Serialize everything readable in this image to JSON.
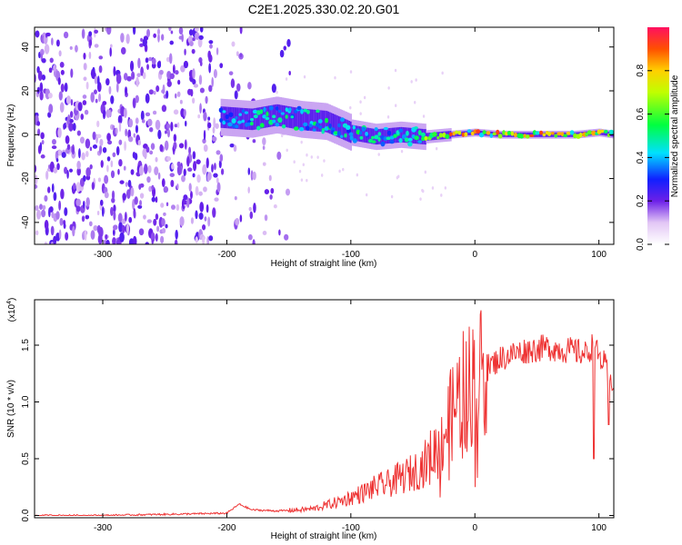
{
  "title": "C2E1.2025.330.02.20.G01",
  "chart_data": [
    {
      "type": "heatmap",
      "xlabel": "Height of straight line (km)",
      "ylabel": "Frequency (Hz)",
      "xlim": [
        -355,
        112
      ],
      "ylim": [
        -50,
        49
      ],
      "xticks": [
        -300,
        -200,
        -100,
        0,
        100
      ],
      "xtick_labels": [
        "-300",
        "-200",
        "-100",
        "0",
        "100"
      ],
      "yticks": [
        -40,
        -20,
        0,
        20,
        40
      ],
      "ytick_labels": [
        "-40",
        "-20",
        "0",
        "20",
        "40"
      ],
      "colorbar": {
        "label": "Normalized spectral amplitude",
        "range": [
          0,
          1
        ],
        "ticks": [
          0.0,
          0.2,
          0.4,
          0.6,
          0.8
        ],
        "tick_labels": [
          "0.0",
          "0.2",
          "0.4",
          "0.6",
          "0.8"
        ]
      },
      "features": {
        "noise_region_x": [
          -355,
          -160
        ],
        "gap_bands_x": [
          [
            -205,
            -198
          ],
          [
            -190,
            -185
          ],
          [
            -178,
            -172
          ]
        ],
        "signal_track": [
          [
            -205,
            8
          ],
          [
            -180,
            7
          ],
          [
            -160,
            9
          ],
          [
            -140,
            7
          ],
          [
            -120,
            6
          ],
          [
            -100,
            1
          ],
          [
            -80,
            -1
          ],
          [
            -60,
            0
          ],
          [
            -40,
            -1
          ],
          [
            -20,
            0
          ],
          [
            0,
            1
          ],
          [
            20,
            0
          ],
          [
            40,
            0
          ],
          [
            60,
            0
          ],
          [
            80,
            0
          ],
          [
            100,
            1
          ],
          [
            112,
            0
          ]
        ],
        "track_peak_amplitude": 0.9
      }
    },
    {
      "type": "line",
      "xlabel": "Height of straight line (km)",
      "ylabel": "SNR (10 * v/v)",
      "y_multiplier": "(x10",
      "y_multiplier_exp": "4",
      "y_multiplier_close": ")",
      "xlim": [
        -355,
        112
      ],
      "ylim": [
        -0.02,
        1.9
      ],
      "xticks": [
        -300,
        -200,
        -100,
        0,
        100
      ],
      "xtick_labels": [
        "-300",
        "-200",
        "-100",
        "0",
        "100"
      ],
      "yticks": [
        0.0,
        0.5,
        1.0,
        1.5
      ],
      "ytick_labels": [
        "0.0",
        "0.5",
        "1.0",
        "1.5"
      ],
      "color": "#ee3333",
      "series": [
        {
          "name": "SNR",
          "x": [
            -355,
            -300,
            -250,
            -200,
            -190,
            -180,
            -160,
            -140,
            -130,
            -120,
            -110,
            -100,
            -90,
            -80,
            -70,
            -60,
            -50,
            -40,
            -30,
            -20,
            -15,
            -10,
            -5,
            0,
            10,
            20,
            30,
            40,
            50,
            60,
            70,
            80,
            90,
            95,
            100,
            105,
            108,
            112
          ],
          "y": [
            0.0,
            0.0,
            0.01,
            0.02,
            0.1,
            0.05,
            0.04,
            0.05,
            0.06,
            0.09,
            0.12,
            0.16,
            0.2,
            0.25,
            0.28,
            0.33,
            0.38,
            0.45,
            0.6,
            0.85,
            1.0,
            1.1,
            1.15,
            1.2,
            1.3,
            1.38,
            1.42,
            1.45,
            1.47,
            1.48,
            1.46,
            1.45,
            1.42,
            1.5,
            1.4,
            1.32,
            1.18,
            1.2
          ]
        }
      ]
    }
  ]
}
